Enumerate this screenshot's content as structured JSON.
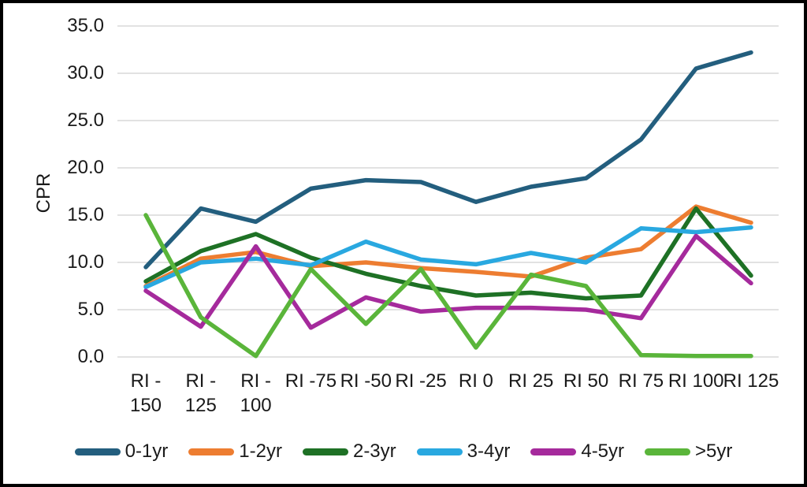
{
  "figure": {
    "background": "#FFFFFF",
    "border_color": "#000000",
    "gridline_color": "#D9D9D9",
    "text_color": "#1A1A1A"
  },
  "y_axis": {
    "title": "CPR",
    "tick_labels": [
      "35.0",
      "30.0",
      "25.0",
      "20.0",
      "15.0",
      "10.0",
      "5.0",
      "0.0"
    ]
  },
  "x_axis": {
    "tick_display": [
      "RI -\n150",
      "RI -\n125",
      "RI -\n100",
      "RI -75",
      "RI -50",
      "RI -25",
      "RI 0",
      "RI 25",
      "RI 50",
      "RI 75",
      "RI 100",
      "RI 125"
    ]
  },
  "chart_data": {
    "type": "line",
    "title": "",
    "xlabel": "",
    "ylabel": "CPR",
    "ylim": [
      0,
      35
    ],
    "ytick_step": 5,
    "grid": "horizontal-only",
    "legend_position": "bottom",
    "categories": [
      "RI -150",
      "RI -125",
      "RI -100",
      "RI -75",
      "RI -50",
      "RI -25",
      "RI 0",
      "RI 25",
      "RI 50",
      "RI 75",
      "RI 100",
      "RI 125"
    ],
    "series": [
      {
        "name": "0-1yr",
        "color": "#235E7E",
        "values": [
          9.5,
          15.7,
          14.3,
          17.8,
          18.7,
          18.5,
          16.4,
          18.0,
          18.9,
          23.0,
          30.5,
          32.2
        ]
      },
      {
        "name": "1-2yr",
        "color": "#ED7D31",
        "values": [
          7.5,
          10.4,
          11.1,
          9.6,
          10.0,
          9.4,
          9.0,
          8.5,
          10.5,
          11.4,
          15.9,
          14.2
        ]
      },
      {
        "name": "2-3yr",
        "color": "#1E7125",
        "values": [
          8.0,
          11.2,
          13.0,
          10.5,
          8.8,
          7.5,
          6.5,
          6.8,
          6.2,
          6.5,
          15.7,
          8.6
        ]
      },
      {
        "name": "3-4yr",
        "color": "#29A8E0",
        "values": [
          7.4,
          10.0,
          10.4,
          9.7,
          12.2,
          10.3,
          9.8,
          11.0,
          10.0,
          13.6,
          13.2,
          13.7
        ]
      },
      {
        "name": "4-5yr",
        "color": "#A52A9C",
        "values": [
          7.0,
          3.2,
          11.7,
          3.1,
          6.3,
          4.8,
          5.2,
          5.2,
          5.0,
          4.1,
          12.8,
          7.8
        ]
      },
      {
        "name": ">5yr",
        "color": "#5AB53A",
        "values": [
          15.0,
          4.2,
          0.1,
          9.3,
          3.5,
          9.3,
          1.0,
          8.7,
          7.5,
          0.2,
          0.1,
          0.1
        ]
      }
    ]
  }
}
